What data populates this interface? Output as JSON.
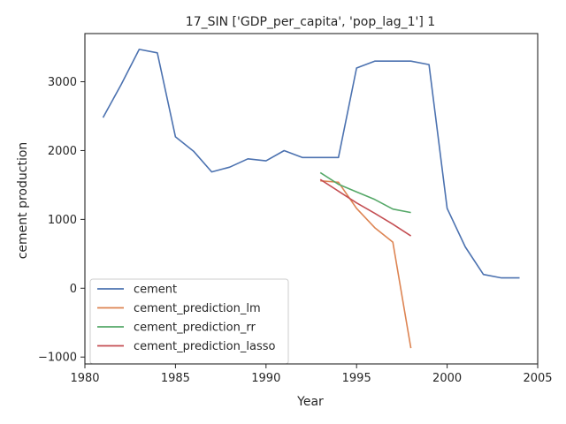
{
  "chart_data": {
    "type": "line",
    "title": "17_SIN ['GDP_per_capita', 'pop_lag_1'] 1",
    "xlabel": "Year",
    "ylabel": "cement production",
    "xlim": [
      1980,
      2005
    ],
    "ylim": [
      -1100,
      3700
    ],
    "x_ticks": [
      1980,
      1985,
      1990,
      1995,
      2000,
      2005
    ],
    "y_ticks": [
      -1000,
      0,
      1000,
      2000,
      3000
    ],
    "x_tick_labels": [
      "1980",
      "1985",
      "1990",
      "1995",
      "2000",
      "2005"
    ],
    "y_tick_labels": [
      "−1000",
      "0",
      "1000",
      "2000",
      "3000"
    ],
    "grid": false,
    "legend_position": "lower-left",
    "series": [
      {
        "name": "cement",
        "color": "#4c72b0",
        "x": [
          1981,
          1982,
          1983,
          1984,
          1985,
          1986,
          1987,
          1988,
          1989,
          1990,
          1991,
          1992,
          1993,
          1994,
          1995,
          1996,
          1997,
          1998,
          1999,
          2000,
          2001,
          2002,
          2003,
          2004
        ],
        "y": [
          2480,
          2960,
          3470,
          3420,
          2200,
          1990,
          1690,
          1760,
          1880,
          1850,
          2000,
          1900,
          1900,
          1900,
          3200,
          3300,
          3300,
          3300,
          3250,
          1160,
          600,
          200,
          150,
          150
        ]
      },
      {
        "name": "cement_prediction_lm",
        "color": "#dd8452",
        "x": [
          1993,
          1994,
          1995,
          1996,
          1997,
          1998
        ],
        "y": [
          1560,
          1540,
          1160,
          880,
          670,
          -870
        ]
      },
      {
        "name": "cement_prediction_rr",
        "color": "#55a868",
        "x": [
          1993,
          1994,
          1995,
          1996,
          1997,
          1998
        ],
        "y": [
          1680,
          1510,
          1400,
          1290,
          1150,
          1100
        ]
      },
      {
        "name": "cement_prediction_lasso",
        "color": "#c44e52",
        "x": [
          1993,
          1994,
          1995,
          1996,
          1997,
          1998
        ],
        "y": [
          1580,
          1410,
          1240,
          1090,
          930,
          760
        ]
      }
    ]
  }
}
